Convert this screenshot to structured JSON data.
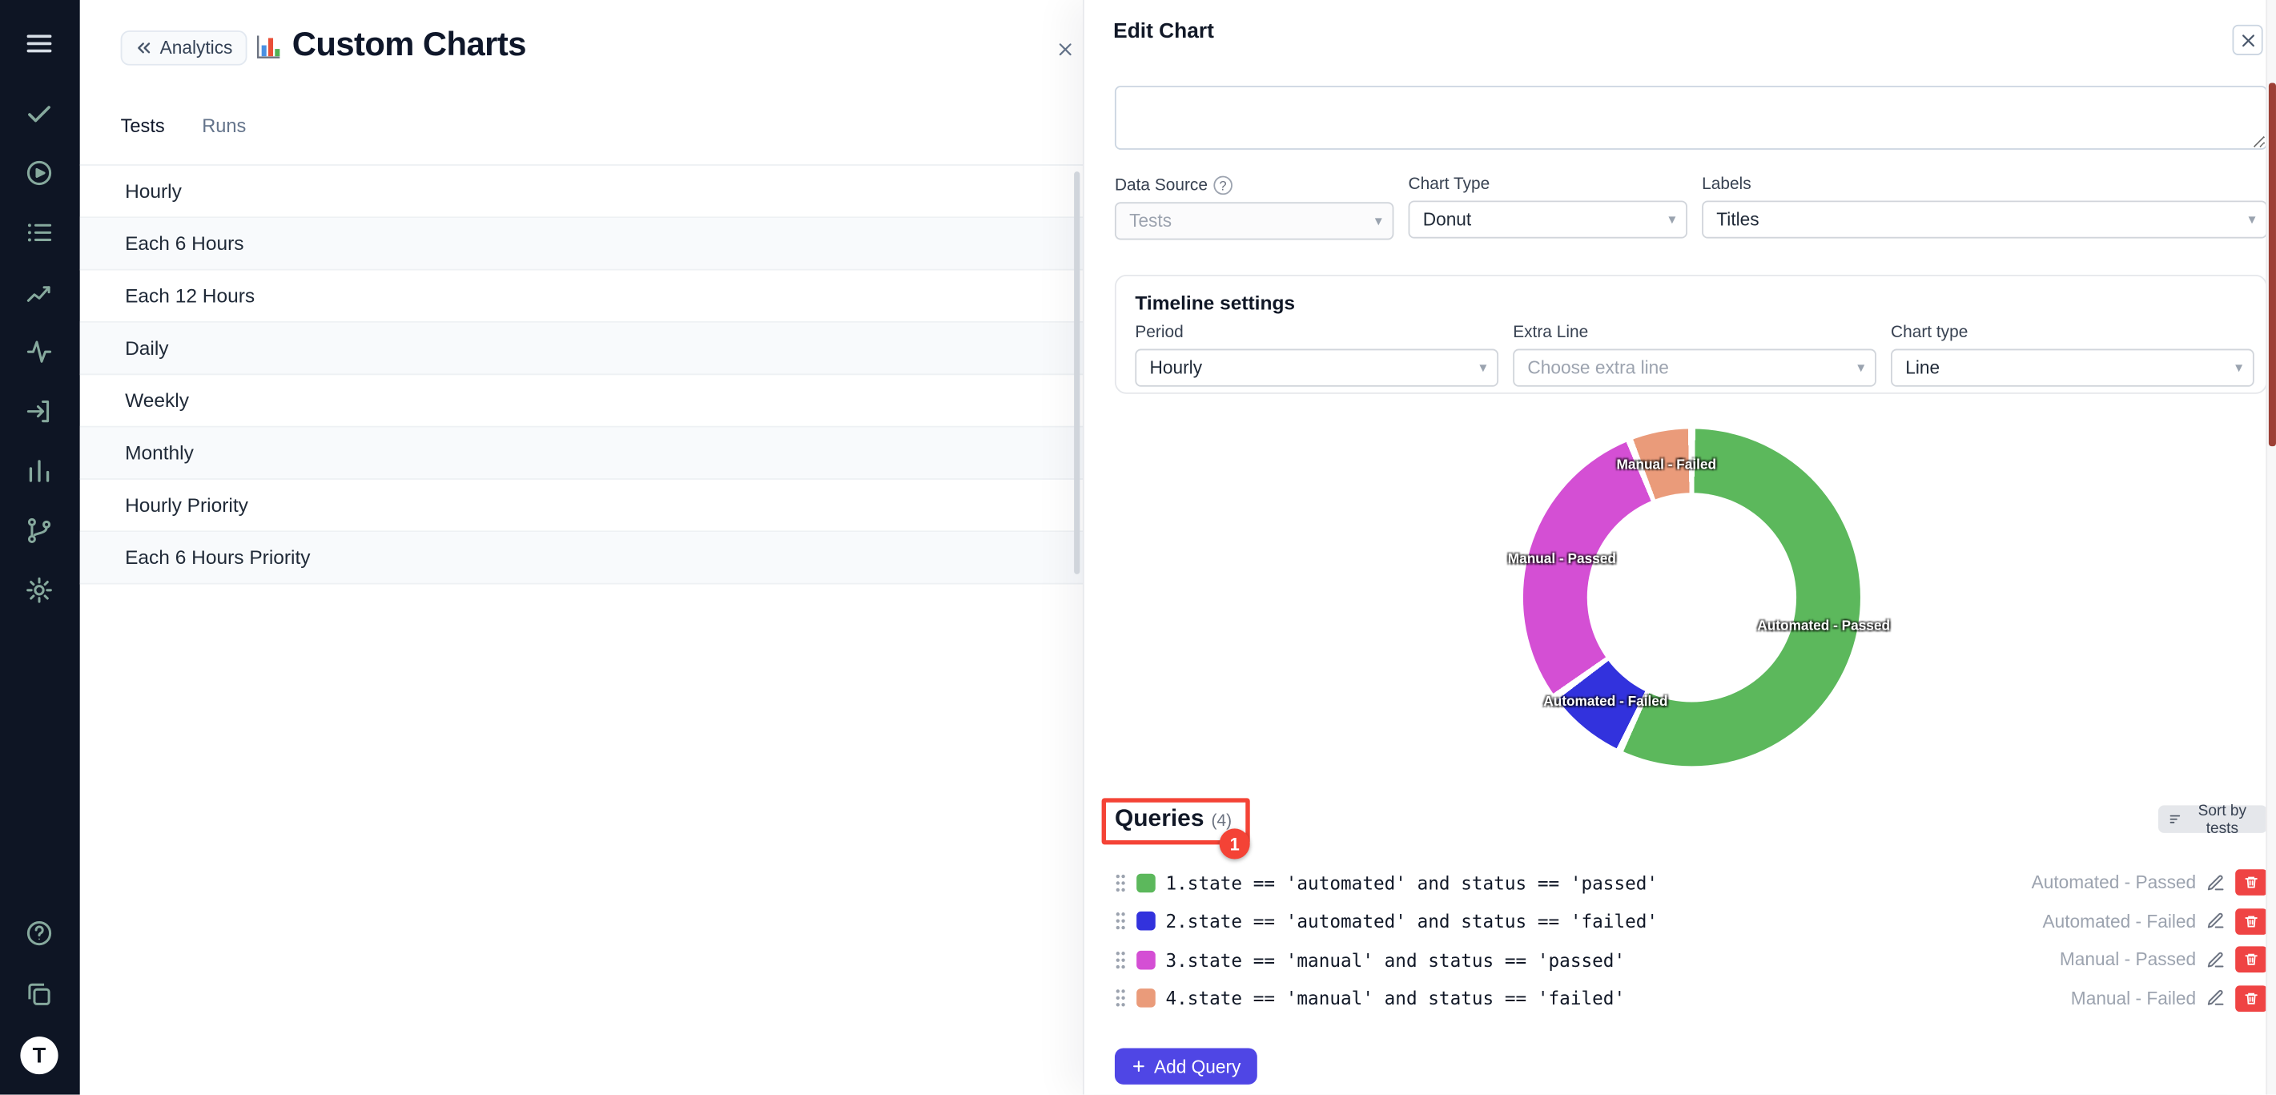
{
  "sidebar": {
    "icons": [
      "menu-icon",
      "tests-icon",
      "runs-icon",
      "plans-icon",
      "analytics-icon",
      "pulse-icon",
      "import-icon",
      "reports-icon",
      "branches-icon",
      "settings-icon",
      "help-icon",
      "copy-icon",
      "logo-t"
    ],
    "logo_letter": "T"
  },
  "panel": {
    "back_label": "Analytics",
    "title": "Custom Charts",
    "tabs": [
      "Tests",
      "Runs"
    ],
    "items": [
      "Hourly",
      "Each 6 Hours",
      "Each 12 Hours",
      "Daily",
      "Weekly",
      "Monthly",
      "Hourly Priority",
      "Each 6 Hours Priority"
    ]
  },
  "modal": {
    "title": "Edit Chart",
    "description_value": "",
    "fields": {
      "data_source": {
        "label": "Data Source",
        "value": "Tests",
        "disabled": true
      },
      "chart_type": {
        "label": "Chart Type",
        "value": "Donut"
      },
      "labels": {
        "label": "Labels",
        "value": "Titles"
      }
    },
    "timeline": {
      "title": "Timeline settings",
      "period": {
        "label": "Period",
        "value": "Hourly"
      },
      "extra": {
        "label": "Extra Line",
        "placeholder": "Choose extra line"
      },
      "chart": {
        "label": "Chart type",
        "value": "Line"
      }
    },
    "queries": {
      "title": "Queries",
      "count": "(4)",
      "badge": "1",
      "sort_label": "Sort by tests",
      "add_label": "Add Query",
      "rows": [
        {
          "index": "1.",
          "query": "state == 'automated' and status == 'passed'",
          "label": "Automated - Passed"
        },
        {
          "index": "2.",
          "query": "state == 'automated' and status == 'failed'",
          "label": "Automated - Failed"
        },
        {
          "index": "3.",
          "query": "state == 'manual' and status == 'passed'",
          "label": "Manual - Passed"
        },
        {
          "index": "4.",
          "query": "state == 'manual' and status == 'failed'",
          "label": "Manual - Failed"
        }
      ]
    }
  },
  "chart_data": {
    "type": "pie",
    "subtype": "donut",
    "title": "",
    "labels": [
      "Automated - Passed",
      "Automated - Failed",
      "Manual - Passed",
      "Manual - Failed"
    ],
    "values_percent": [
      57,
      8,
      29,
      6
    ],
    "colors": [
      "#5cb85c",
      "#3232dd",
      "#d44fd4",
      "#ea9b7a"
    ],
    "start_angle": "top",
    "direction": "clockwise",
    "labels_on_slices": true
  },
  "colors": {
    "accent": "#4f46e5",
    "annotation": "#f44336",
    "delete": "#ef4444",
    "sidebar_bg": "#0e1524"
  }
}
